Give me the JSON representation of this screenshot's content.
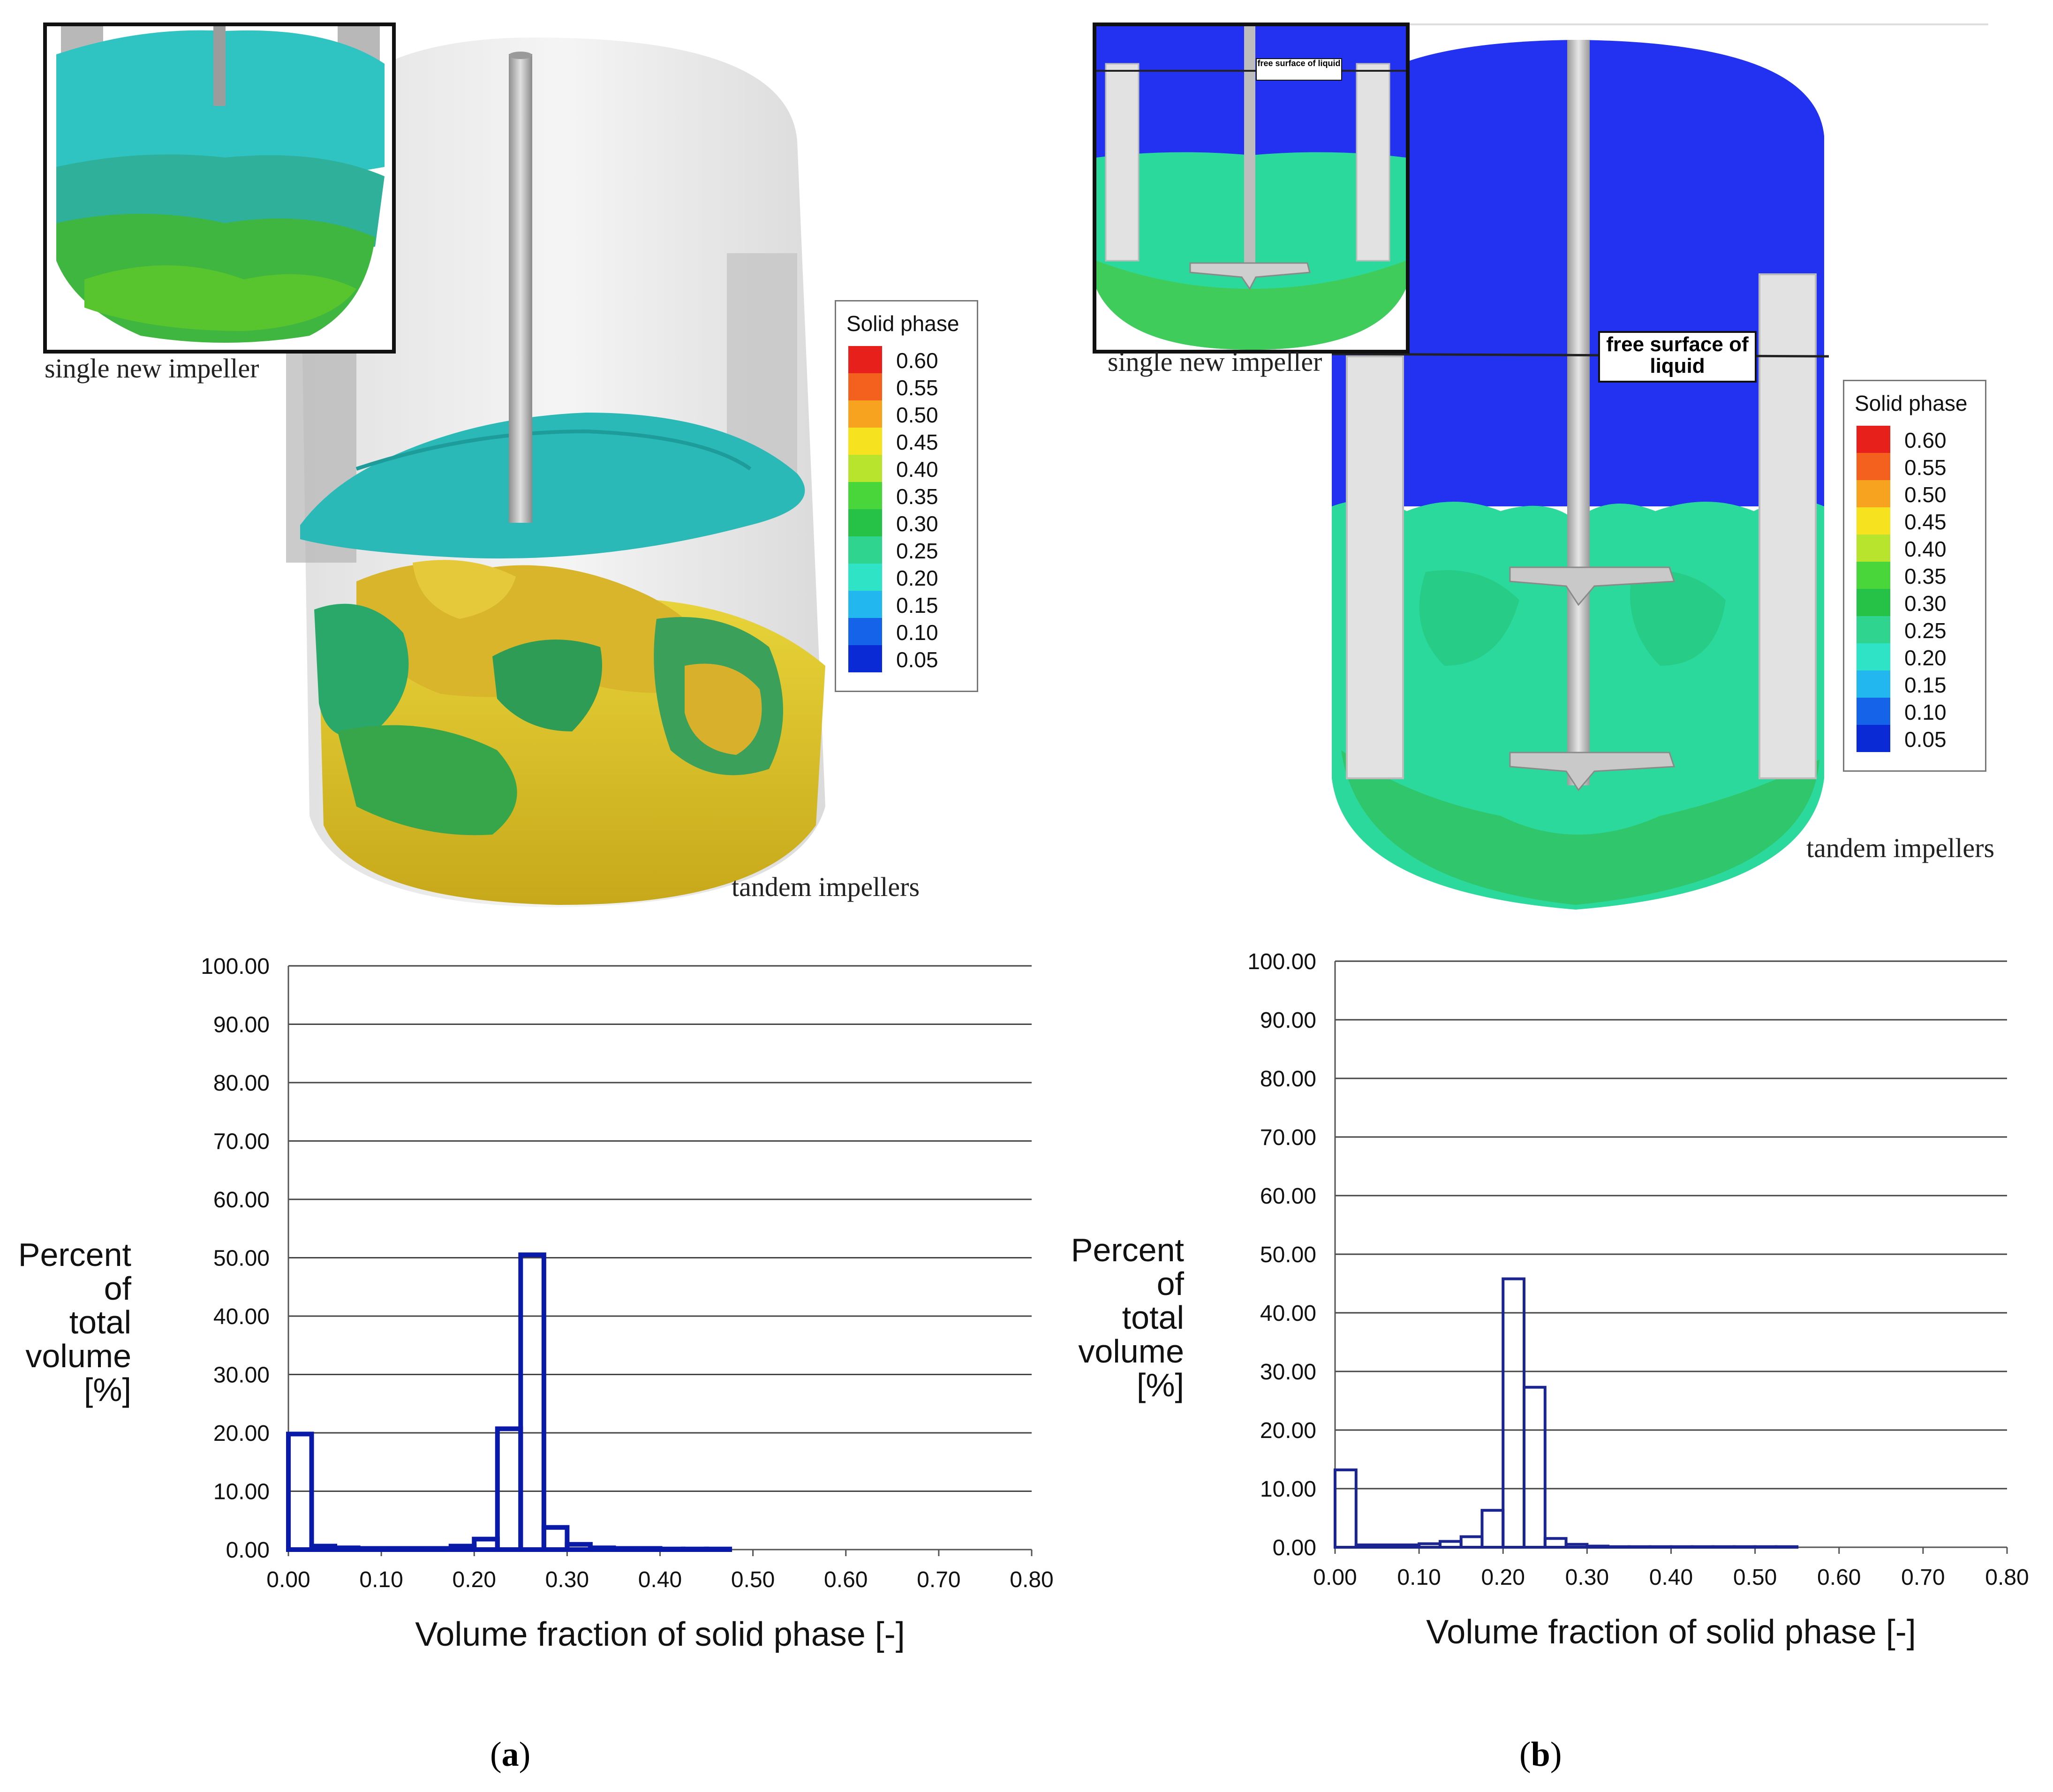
{
  "panels": [
    {
      "label_open": "(",
      "label_letter": "a",
      "label_close": ")",
      "inset_caption": "single new impeller",
      "main_caption": "tandem impellers",
      "legend": {
        "title": "Solid phase",
        "levels": [
          "0.60",
          "0.55",
          "0.50",
          "0.45",
          "0.40",
          "0.35",
          "0.30",
          "0.25",
          "0.20",
          "0.15",
          "0.10",
          "0.05"
        ],
        "colors": [
          "#e8201c",
          "#f4611e",
          "#f8a31f",
          "#f6e21f",
          "#b8e42d",
          "#49d63a",
          "#25c247",
          "#2fd58e",
          "#2ee3c6",
          "#22b8ef",
          "#1463e8",
          "#0a2ad6"
        ]
      }
    },
    {
      "label_open": "(",
      "label_letter": "b",
      "label_close": ")",
      "inset_caption": "single new impeller",
      "main_caption": "tandem impellers",
      "free_surface_main": "free surface of liquid",
      "free_surface_inset": "free surface of liquid",
      "legend": {
        "title": "Solid phase",
        "levels": [
          "0.60",
          "0.55",
          "0.50",
          "0.45",
          "0.40",
          "0.35",
          "0.30",
          "0.25",
          "0.20",
          "0.15",
          "0.10",
          "0.05"
        ],
        "colors": [
          "#e8201c",
          "#f4611e",
          "#f8a31f",
          "#f6e21f",
          "#b8e42d",
          "#49d63a",
          "#25c247",
          "#2fd58e",
          "#2ee3c6",
          "#22b8ef",
          "#1463e8",
          "#0a2ad6"
        ]
      }
    }
  ],
  "chart_data": [
    {
      "type": "bar",
      "subtype": "histogram",
      "xlabel": "Volume fraction of solid phase [-]",
      "ylabel": [
        "Percent",
        "of",
        "total",
        "volume",
        "[%]"
      ],
      "ylim": [
        0,
        100
      ],
      "xlim": [
        0,
        0.8
      ],
      "bin_width": 0.025,
      "yticks": [
        "0.00",
        "10.00",
        "20.00",
        "30.00",
        "40.00",
        "50.00",
        "60.00",
        "70.00",
        "80.00",
        "90.00",
        "100.00"
      ],
      "xticks": [
        "0.00",
        "0.10",
        "0.20",
        "0.30",
        "0.40",
        "0.50",
        "0.60",
        "0.70",
        "0.80"
      ],
      "grid": "horizontal",
      "bar_color": "#0a1aa8",
      "values": [
        19.8,
        0.6,
        0.3,
        0.2,
        0.2,
        0.2,
        0.2,
        0.6,
        1.8,
        20.7,
        50.5,
        3.8,
        0.9,
        0.3,
        0.2,
        0.2,
        0.1,
        0.1,
        0.1
      ]
    },
    {
      "type": "bar",
      "subtype": "histogram",
      "xlabel": "Volume fraction of solid phase [-]",
      "ylabel": [
        "Percent",
        "of",
        "total",
        "volume",
        "[%]"
      ],
      "ylim": [
        0,
        100
      ],
      "xlim": [
        0,
        0.8
      ],
      "bin_width": 0.025,
      "yticks": [
        "0.00",
        "10.00",
        "20.00",
        "30.00",
        "40.00",
        "50.00",
        "60.00",
        "70.00",
        "80.00",
        "90.00",
        "100.00"
      ],
      "xticks": [
        "0.00",
        "0.10",
        "0.20",
        "0.30",
        "0.40",
        "0.50",
        "0.60",
        "0.70",
        "0.80"
      ],
      "grid": "horizontal",
      "bar_color": "#1a2590",
      "values": [
        13.2,
        0.4,
        0.4,
        0.4,
        0.6,
        1.0,
        1.8,
        6.3,
        45.8,
        27.3,
        1.5,
        0.5,
        0.2,
        0.1,
        0.1,
        0.1,
        0.1,
        0.1,
        0.1,
        0.1,
        0.1,
        0.1
      ]
    }
  ]
}
